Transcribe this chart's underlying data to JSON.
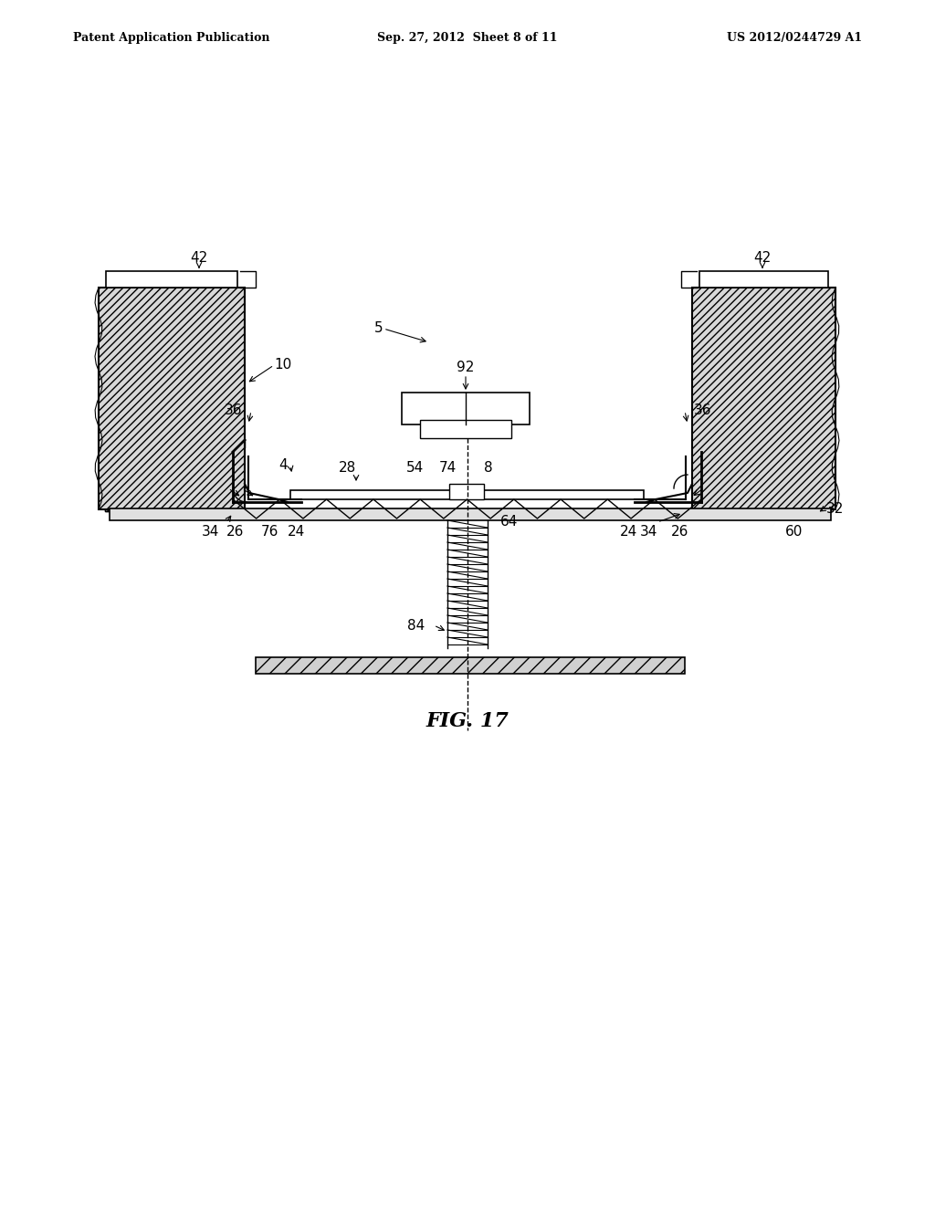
{
  "title": "FIG. 17",
  "header_left": "Patent Application Publication",
  "header_center": "Sep. 27, 2012  Sheet 8 of 11",
  "header_right": "US 2012/0244729 A1",
  "bg_color": "#ffffff",
  "line_color": "#000000",
  "hatch_color": "#555555",
  "labels": {
    "42_left": "42",
    "42_right": "42",
    "10": "10",
    "5": "5",
    "92": "92",
    "36_left": "36",
    "36_right": "36",
    "4": "4",
    "28": "28",
    "54": "54",
    "74": "74",
    "8": "8",
    "34_left": "34",
    "34_right": "34",
    "26_left": "26",
    "26_right": "26",
    "76": "76",
    "24_left": "24",
    "24_right": "24",
    "64": "64",
    "60": "60",
    "32": "32",
    "84": "84"
  }
}
